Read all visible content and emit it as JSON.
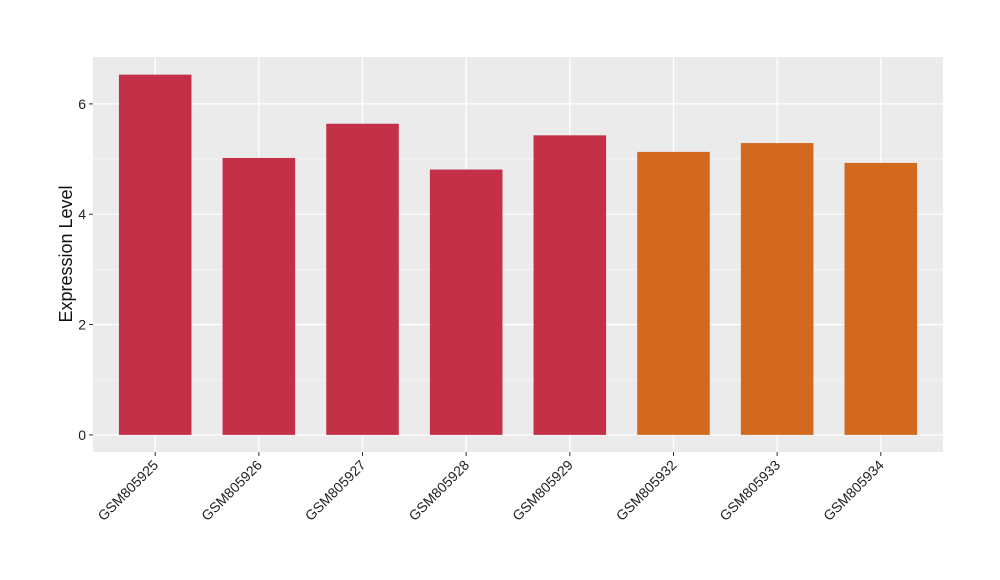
{
  "chart_data": {
    "type": "bar",
    "title": "",
    "xlabel": "",
    "ylabel": "Expression Level",
    "categories": [
      "GSM805925",
      "GSM805926",
      "GSM805927",
      "GSM805928",
      "GSM805929",
      "GSM805932",
      "GSM805933",
      "GSM805934"
    ],
    "values": [
      6.53,
      5.02,
      5.64,
      4.81,
      5.43,
      5.13,
      5.29,
      4.93
    ],
    "bar_colors": [
      "#c33047",
      "#c33047",
      "#c33047",
      "#c33047",
      "#c33047",
      "#d2691e",
      "#d2691e",
      "#d2691e"
    ],
    "ylim": [
      -0.31,
      6.85
    ],
    "yticks": [
      0,
      2,
      4,
      6
    ],
    "grid": true,
    "legend": "none",
    "panel_background": "#ebebeb"
  }
}
